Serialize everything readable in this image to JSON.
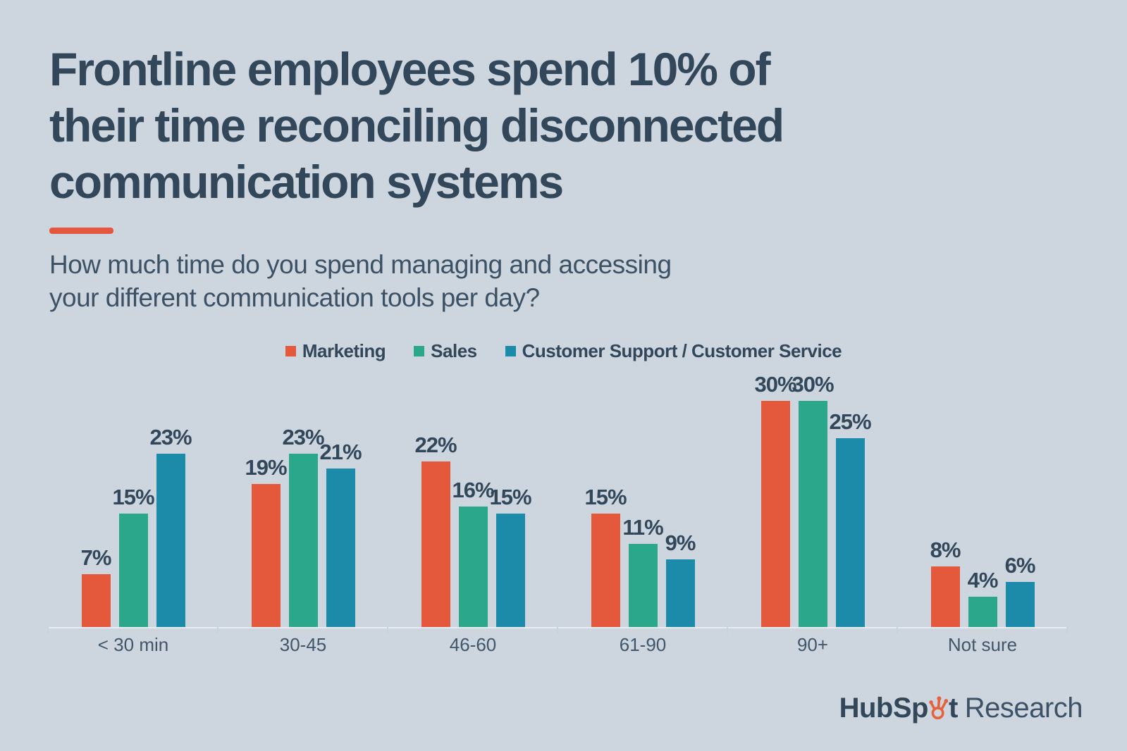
{
  "title": "Frontline employees spend 10% of\ntheir time reconciling disconnected\ncommunication systems",
  "subtitle": "How much time do you spend managing and accessing\nyour different communication tools per day?",
  "colors": {
    "background": "#cdd6df",
    "navy_text": "#33475b",
    "subtitle_text": "#3d5165",
    "category_text": "#42566a",
    "accent_orange": "#e4573d",
    "axis_line": "#e7ecf2",
    "axis_tick": "#c8d2dc"
  },
  "chart_data": {
    "type": "bar",
    "categories": [
      "< 30 min",
      "30-45",
      "46-60",
      "61-90",
      "90+",
      "Not sure"
    ],
    "series": [
      {
        "name": "Marketing",
        "color": "#e4593c",
        "values": [
          7,
          19,
          22,
          15,
          30,
          8
        ]
      },
      {
        "name": "Sales",
        "color": "#2ba88b",
        "values": [
          15,
          23,
          16,
          11,
          30,
          4
        ]
      },
      {
        "name": "Customer Support / Customer Service",
        "color": "#1c8baa",
        "values": [
          23,
          21,
          15,
          9,
          25,
          6
        ]
      }
    ],
    "value_suffix": "%",
    "ylim": [
      0,
      33
    ],
    "grid": false,
    "legend_position": "top",
    "value_labels": "above-bars"
  },
  "logo": {
    "brand_prefix": "HubSp",
    "brand_suffix": "t",
    "secondary": "Research",
    "sprocket_color": "#e8613e"
  }
}
